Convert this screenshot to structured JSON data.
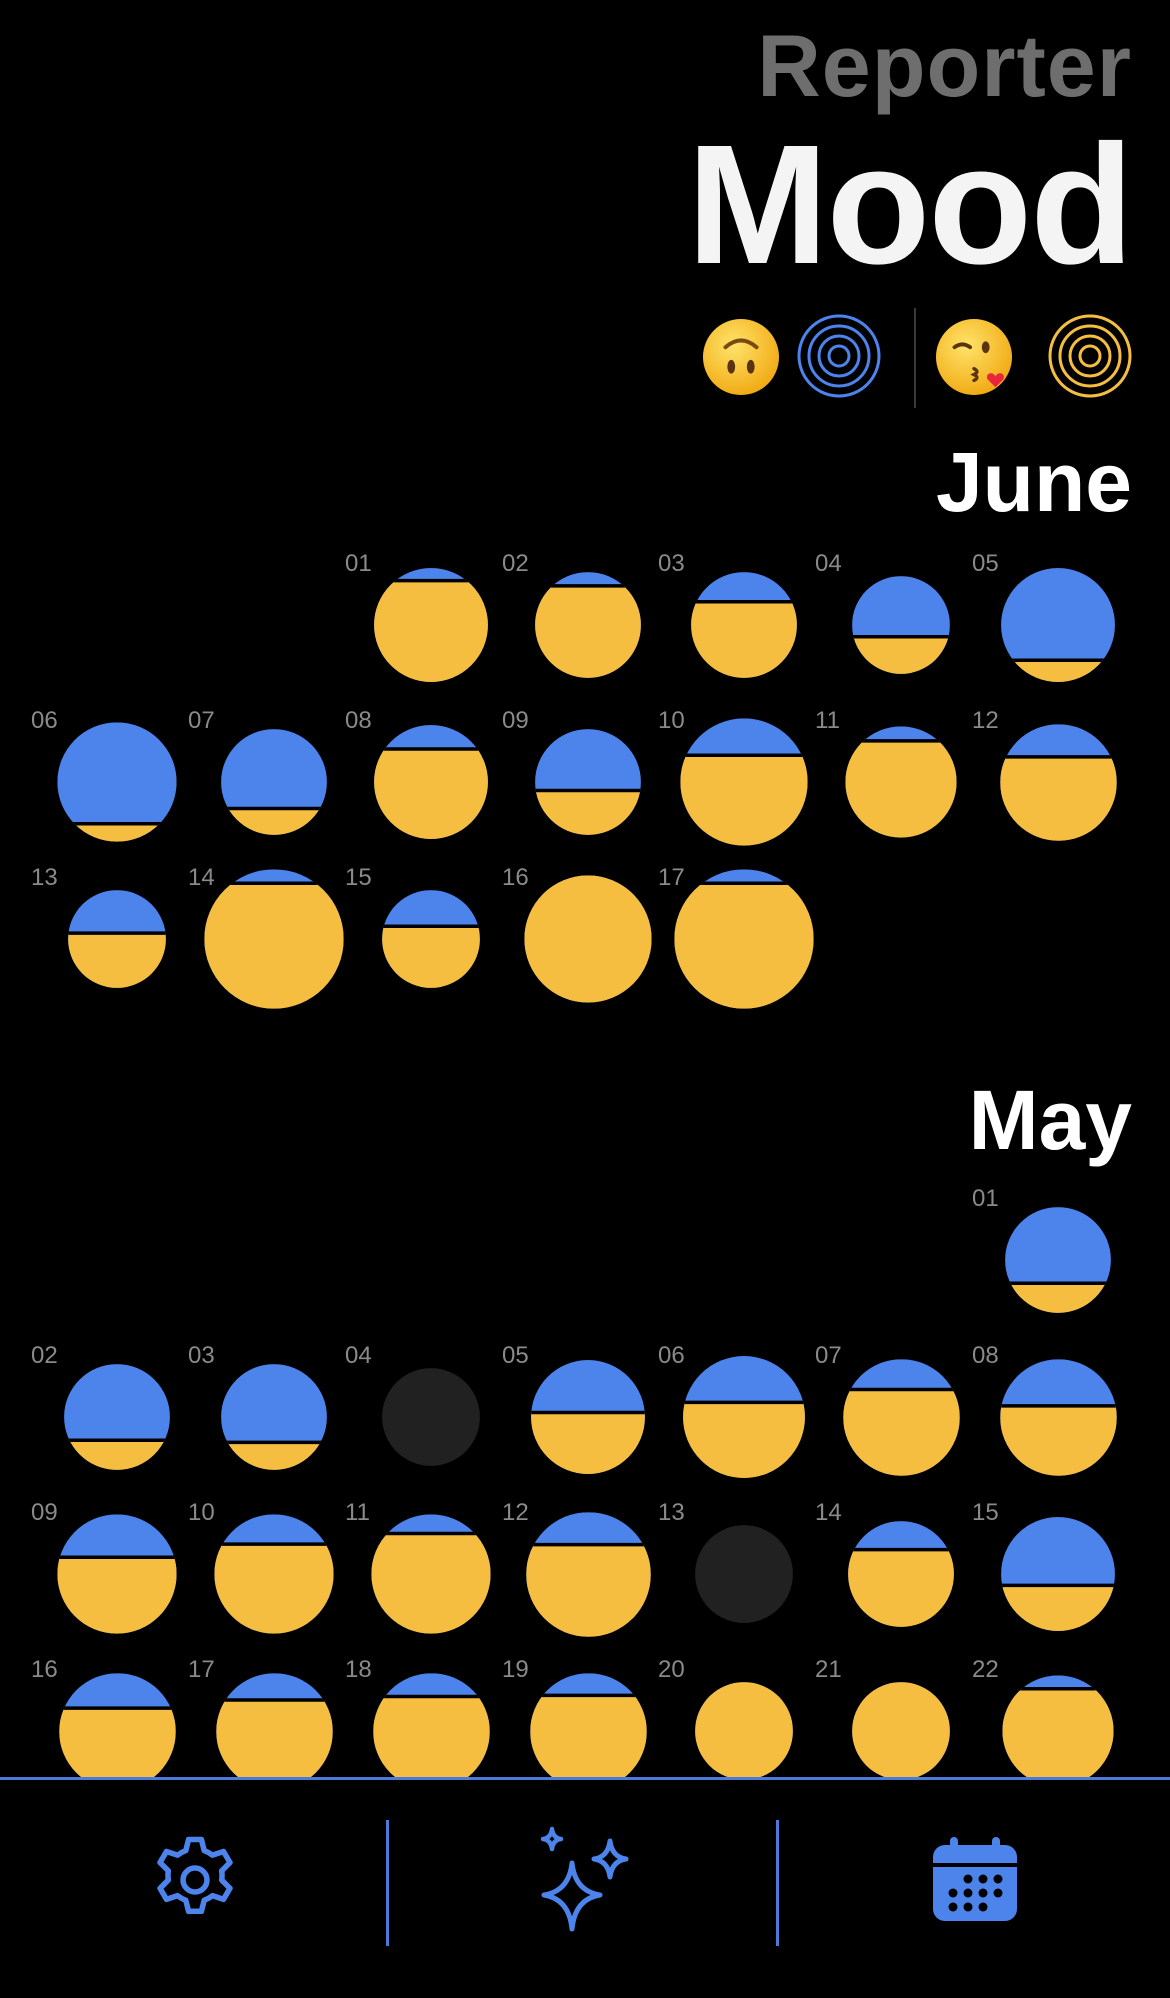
{
  "header": {
    "subtitle": "Reporter",
    "title": "Mood"
  },
  "legend": {
    "low_icon": "upside-down-face-icon",
    "high_icon": "kissing-face-icon"
  },
  "colors": {
    "blue": "#4d84ec",
    "yellow": "#f5be41",
    "empty": "#212121",
    "accent": "#4b7ad8"
  },
  "months": [
    {
      "name": "June",
      "days": [
        {
          "label": "01",
          "col": 2,
          "row": 0,
          "size": 0.85,
          "fill": 0.89
        },
        {
          "label": "02",
          "col": 3,
          "row": 0,
          "size": 0.79,
          "fill": 0.87
        },
        {
          "label": "03",
          "col": 4,
          "row": 0,
          "size": 0.79,
          "fill": 0.72
        },
        {
          "label": "04",
          "col": 5,
          "row": 0,
          "size": 0.73,
          "fill": 0.38
        },
        {
          "label": "05",
          "col": 6,
          "row": 0,
          "size": 0.85,
          "fill": 0.19
        },
        {
          "label": "06",
          "col": 0,
          "row": 1,
          "size": 0.89,
          "fill": 0.15
        },
        {
          "label": "07",
          "col": 1,
          "row": 1,
          "size": 0.79,
          "fill": 0.25
        },
        {
          "label": "08",
          "col": 2,
          "row": 1,
          "size": 0.85,
          "fill": 0.79
        },
        {
          "label": "09",
          "col": 3,
          "row": 1,
          "size": 0.79,
          "fill": 0.42
        },
        {
          "label": "10",
          "col": 4,
          "row": 1,
          "size": 0.95,
          "fill": 0.71
        },
        {
          "label": "11",
          "col": 5,
          "row": 1,
          "size": 0.83,
          "fill": 0.87
        },
        {
          "label": "12",
          "col": 6,
          "row": 1,
          "size": 0.87,
          "fill": 0.72
        },
        {
          "label": "13",
          "col": 0,
          "row": 2,
          "size": 0.73,
          "fill": 0.56
        },
        {
          "label": "14",
          "col": 1,
          "row": 2,
          "size": 1.04,
          "fill": 0.9
        },
        {
          "label": "15",
          "col": 2,
          "row": 2,
          "size": 0.73,
          "fill": 0.63
        },
        {
          "label": "16",
          "col": 3,
          "row": 2,
          "size": 0.95,
          "fill": 1.0
        },
        {
          "label": "17",
          "col": 4,
          "row": 2,
          "size": 1.04,
          "fill": 0.9
        }
      ]
    },
    {
      "name": "May",
      "days": [
        {
          "label": "01",
          "col": 6,
          "row": 0,
          "size": 0.79,
          "fill": 0.28
        },
        {
          "label": "02",
          "col": 0,
          "row": 1,
          "size": 0.79,
          "fill": 0.28
        },
        {
          "label": "03",
          "col": 1,
          "row": 1,
          "size": 0.79,
          "fill": 0.26
        },
        {
          "label": "04",
          "col": 2,
          "row": 1,
          "size": 0.73,
          "fill": 0,
          "empty": true
        },
        {
          "label": "05",
          "col": 3,
          "row": 1,
          "size": 0.85,
          "fill": 0.54
        },
        {
          "label": "06",
          "col": 4,
          "row": 1,
          "size": 0.91,
          "fill": 0.62
        },
        {
          "label": "07",
          "col": 5,
          "row": 1,
          "size": 0.87,
          "fill": 0.74
        },
        {
          "label": "08",
          "col": 6,
          "row": 1,
          "size": 0.87,
          "fill": 0.6
        },
        {
          "label": "09",
          "col": 0,
          "row": 2,
          "size": 0.89,
          "fill": 0.64
        },
        {
          "label": "10",
          "col": 1,
          "row": 2,
          "size": 0.89,
          "fill": 0.75
        },
        {
          "label": "11",
          "col": 2,
          "row": 2,
          "size": 0.89,
          "fill": 0.84
        },
        {
          "label": "12",
          "col": 3,
          "row": 2,
          "size": 0.93,
          "fill": 0.74
        },
        {
          "label": "13",
          "col": 4,
          "row": 2,
          "size": 0.73,
          "fill": 0,
          "empty": true
        },
        {
          "label": "14",
          "col": 5,
          "row": 2,
          "size": 0.79,
          "fill": 0.73
        },
        {
          "label": "15",
          "col": 6,
          "row": 2,
          "size": 0.85,
          "fill": 0.4
        },
        {
          "label": "16",
          "col": 0,
          "row": 3,
          "size": 0.87,
          "fill": 0.7
        },
        {
          "label": "17",
          "col": 1,
          "row": 3,
          "size": 0.87,
          "fill": 0.77
        },
        {
          "label": "18",
          "col": 2,
          "row": 3,
          "size": 0.87,
          "fill": 0.8
        },
        {
          "label": "19",
          "col": 3,
          "row": 3,
          "size": 0.87,
          "fill": 0.81
        },
        {
          "label": "20",
          "col": 4,
          "row": 3,
          "size": 0.73,
          "fill": 1.0
        },
        {
          "label": "21",
          "col": 5,
          "row": 3,
          "size": 0.73,
          "fill": 1.0
        },
        {
          "label": "22",
          "col": 6,
          "row": 3,
          "size": 0.83,
          "fill": 0.88
        }
      ]
    }
  ],
  "nav": {
    "items": [
      {
        "name": "settings",
        "icon": "gear-icon"
      },
      {
        "name": "insights",
        "icon": "sparkles-icon"
      },
      {
        "name": "calendar",
        "icon": "calendar-icon"
      }
    ]
  }
}
